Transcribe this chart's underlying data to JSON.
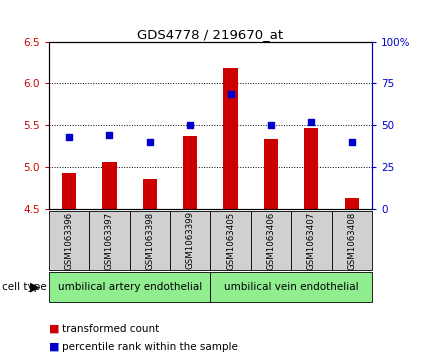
{
  "title": "GDS4778 / 219670_at",
  "samples": [
    "GSM1063396",
    "GSM1063397",
    "GSM1063398",
    "GSM1063399",
    "GSM1063405",
    "GSM1063406",
    "GSM1063407",
    "GSM1063408"
  ],
  "transformed_count": [
    4.93,
    5.06,
    4.86,
    5.37,
    6.18,
    5.33,
    5.47,
    4.63
  ],
  "percentile_rank": [
    43,
    44,
    40,
    50,
    69,
    50,
    52,
    40
  ],
  "ylim_left": [
    4.5,
    6.5
  ],
  "ylim_right": [
    0,
    100
  ],
  "yticks_left": [
    4.5,
    5.0,
    5.5,
    6.0,
    6.5
  ],
  "yticks_right": [
    0,
    25,
    50,
    75,
    100
  ],
  "ytick_labels_right": [
    "0",
    "25",
    "50",
    "75",
    "100%"
  ],
  "bar_color": "#cc0000",
  "dot_color": "#0000cc",
  "bar_bottom": 4.5,
  "cell_type_groups": [
    {
      "label": "umbilical artery endothelial",
      "start": 0,
      "end": 4,
      "color": "#90ee90"
    },
    {
      "label": "umbilical vein endothelial",
      "start": 4,
      "end": 8,
      "color": "#90ee90"
    }
  ],
  "box_color": "#d0d0d0",
  "left_tick_color": "#cc0000",
  "right_tick_color": "#0000cc",
  "grid_linestyle": "dotted",
  "bar_width": 0.35,
  "dot_size": 20
}
